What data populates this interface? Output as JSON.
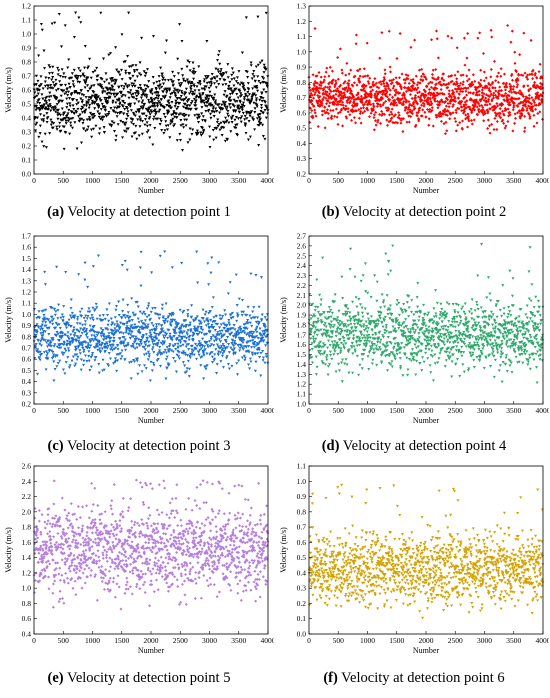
{
  "figure": {
    "captions": [
      {
        "letter": "(a)",
        "text": " Velocity at detection point 1"
      },
      {
        "letter": "(b)",
        "text": " Velocity at detection point 2"
      },
      {
        "letter": "(c)",
        "text": " Velocity at detection point 3"
      },
      {
        "letter": "(d)",
        "text": " Velocity at detection point 4"
      },
      {
        "letter": "(e)",
        "text": " Velocity at detection point 5"
      },
      {
        "letter": "(f)",
        "text": " Velocity at detection point 6"
      }
    ]
  },
  "chart_data": [
    {
      "type": "scatter",
      "title": "",
      "xlabel": "Number",
      "ylabel": "Velocity (m/s)",
      "xlim": [
        0,
        4000
      ],
      "ylim": [
        0.0,
        1.2
      ],
      "xticks": [
        0,
        500,
        1000,
        1500,
        2000,
        2500,
        3000,
        3500,
        4000
      ],
      "yticks": [
        0.0,
        0.1,
        0.2,
        0.3,
        0.4,
        0.5,
        0.6,
        0.7,
        0.8,
        0.9,
        1.0,
        1.1,
        1.2
      ],
      "ytick_decimals": 1,
      "marker_color": "#000000",
      "marker": "triangle-down",
      "n_points": 4000,
      "typical_range": [
        0.15,
        0.9
      ],
      "max_value": 1.18,
      "min_value": 0.12
    },
    {
      "type": "scatter",
      "title": "",
      "xlabel": "Number",
      "ylabel": "Velocity (m/s)",
      "xlim": [
        0,
        4000
      ],
      "ylim": [
        0.2,
        1.3
      ],
      "xticks": [
        0,
        500,
        1000,
        1500,
        2000,
        2500,
        3000,
        3500,
        4000
      ],
      "yticks": [
        0.2,
        0.3,
        0.4,
        0.5,
        0.6,
        0.7,
        0.8,
        0.9,
        1.0,
        1.1,
        1.2,
        1.3
      ],
      "ytick_decimals": 1,
      "marker_color": "#ff0000",
      "marker": "diamond",
      "n_points": 4000,
      "typical_range": [
        0.45,
        0.95
      ],
      "max_value": 1.18,
      "min_value": 0.33
    },
    {
      "type": "scatter",
      "title": "",
      "xlabel": "Number",
      "ylabel": "Velocity (m/s)",
      "xlim": [
        0,
        4000
      ],
      "ylim": [
        0.2,
        1.7
      ],
      "xticks": [
        0,
        500,
        1000,
        1500,
        2000,
        2500,
        3000,
        3500,
        4000
      ],
      "yticks": [
        0.2,
        0.3,
        0.4,
        0.5,
        0.6,
        0.7,
        0.8,
        0.9,
        1.0,
        1.1,
        1.2,
        1.3,
        1.4,
        1.5,
        1.6,
        1.7
      ],
      "ytick_decimals": 1,
      "marker_color": "#1a6fd4",
      "marker": "triangle-down",
      "n_points": 4000,
      "typical_range": [
        0.4,
        1.2
      ],
      "max_value": 1.57,
      "min_value": 0.32
    },
    {
      "type": "scatter",
      "title": "",
      "xlabel": "Number",
      "ylabel": "Velocity (m/s)",
      "xlim": [
        0,
        4000
      ],
      "ylim": [
        1.0,
        2.7
      ],
      "xticks": [
        0,
        500,
        1000,
        1500,
        2000,
        2500,
        3000,
        3500,
        4000
      ],
      "yticks": [
        1.0,
        1.1,
        1.2,
        1.3,
        1.4,
        1.5,
        1.6,
        1.7,
        1.8,
        1.9,
        2.0,
        2.1,
        2.2,
        2.3,
        2.4,
        2.5,
        2.6,
        2.7
      ],
      "ytick_decimals": 1,
      "marker_color": "#2ea86b",
      "marker": "triangle-down",
      "n_points": 4000,
      "typical_range": [
        1.2,
        2.2
      ],
      "max_value": 2.62,
      "min_value": 1.15
    },
    {
      "type": "scatter",
      "title": "",
      "xlabel": "Number",
      "ylabel": "Velocity (m/s)",
      "xlim": [
        0,
        4000
      ],
      "ylim": [
        0.4,
        2.6
      ],
      "xticks": [
        0,
        500,
        1000,
        1500,
        2000,
        2500,
        3000,
        3500,
        4000
      ],
      "yticks": [
        0.4,
        0.6,
        0.8,
        1.0,
        1.2,
        1.4,
        1.6,
        1.8,
        2.0,
        2.2,
        2.4,
        2.6
      ],
      "ytick_decimals": 1,
      "marker_color": "#b57ee0",
      "marker": "diamond",
      "n_points": 4000,
      "typical_range": [
        0.7,
        2.3
      ],
      "max_value": 2.42,
      "min_value": 0.62
    },
    {
      "type": "scatter",
      "title": "",
      "xlabel": "Number",
      "ylabel": "Velocity (m/s)",
      "xlim": [
        0,
        4000
      ],
      "ylim": [
        0.0,
        1.1
      ],
      "xticks": [
        0,
        500,
        1000,
        1500,
        2000,
        2500,
        3000,
        3500,
        4000
      ],
      "yticks": [
        0.0,
        0.1,
        0.2,
        0.3,
        0.4,
        0.5,
        0.6,
        0.7,
        0.8,
        0.9,
        1.0,
        1.1
      ],
      "ytick_decimals": 1,
      "marker_color": "#d4a100",
      "marker": "triangle-down",
      "n_points": 4000,
      "typical_range": [
        0.1,
        0.75
      ],
      "max_value": 0.98,
      "min_value": 0.08
    }
  ]
}
